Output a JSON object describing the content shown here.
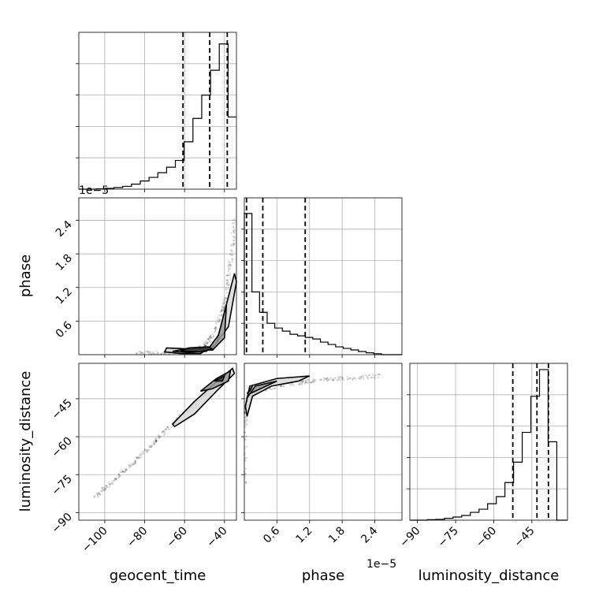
{
  "chart_data": [
    {
      "type": "histogram",
      "panel": "geocent_time",
      "xlim": [
        -113,
        -34
      ],
      "x_tick_values": [
        -100,
        -80,
        -60,
        -40
      ],
      "x_tick_labels": [
        "−100",
        "−80",
        "−60",
        "−40"
      ],
      "xlabel": "geocent_time",
      "bin_edges": [
        -113,
        -108.6,
        -104.2,
        -99.8,
        -95.4,
        -91.0,
        -86.6,
        -82.2,
        -77.8,
        -73.4,
        -69.0,
        -64.6,
        -60.2,
        -55.8,
        -51.4,
        -47.0,
        -42.6,
        -38.2,
        -34
      ],
      "counts": [
        0.0,
        0.0,
        0.2,
        0.5,
        1.0,
        1.8,
        3.2,
        5.2,
        7.5,
        10.5,
        14.0,
        18.3,
        30.2,
        45.1,
        60.0,
        75.8,
        92.6,
        46.0
      ],
      "ylim": [
        0,
        100
      ],
      "quantile_lines": [
        -60.8,
        -47.4,
        -38.6
      ],
      "grid": true
    },
    {
      "type": "histogram",
      "panel": "phase",
      "xlim": [
        0.0,
        2.9
      ],
      "x_tick_values": [
        0.6,
        1.2,
        1.8,
        2.4
      ],
      "x_tick_labels": [
        "0.6",
        "1.2",
        "1.8",
        "2.4"
      ],
      "x_offset_text": "1e−5",
      "xlabel": "phase",
      "bin_edges": [
        0.0,
        0.14,
        0.28,
        0.42,
        0.56,
        0.7,
        0.84,
        0.98,
        1.12,
        1.26,
        1.4,
        1.54,
        1.68,
        1.82,
        1.96,
        2.1,
        2.24,
        2.38,
        2.52,
        2.9
      ],
      "counts": [
        90.0,
        40.0,
        27.0,
        20.0,
        17.0,
        15.0,
        13.0,
        12.0,
        11.0,
        10.0,
        8.0,
        6.5,
        5.0,
        4.0,
        3.0,
        2.0,
        1.2,
        0.6,
        0.0
      ],
      "ylim": [
        0,
        100
      ],
      "quantile_lines": [
        0.04,
        0.34,
        1.12
      ],
      "grid": true
    },
    {
      "type": "histogram",
      "panel": "luminosity_distance",
      "xlim": [
        -93,
        -31
      ],
      "x_tick_values": [
        -90,
        -75,
        -60,
        -45
      ],
      "x_tick_labels": [
        "−90",
        "−75",
        "−60",
        "−45"
      ],
      "xlabel": "luminosity_distance",
      "bin_edges": [
        -93,
        -89.6,
        -86.2,
        -82.8,
        -79.4,
        -76.0,
        -72.6,
        -69.2,
        -65.8,
        -62.4,
        -59.0,
        -55.6,
        -52.2,
        -48.8,
        -45.4,
        -42.0,
        -38.6,
        -35.2,
        -31
      ],
      "counts": [
        0.0,
        0.0,
        0.3,
        0.5,
        1.2,
        2.0,
        3.0,
        5.0,
        7.0,
        10.5,
        15.0,
        24.0,
        37.0,
        56.0,
        79.0,
        96.0,
        50.0,
        0.0
      ],
      "ylim": [
        0,
        100
      ],
      "quantile_lines": [
        -52.5,
        -43.0,
        -38.5
      ],
      "grid": true
    },
    {
      "type": "scatter",
      "panel": "phase_vs_geocent_time",
      "x": "geocent_time",
      "y": "phase",
      "xlim": [
        -113,
        -34
      ],
      "ylim": [
        0.0,
        2.8
      ],
      "y_tick_values": [
        0.6,
        1.2,
        1.8,
        2.4
      ],
      "y_tick_labels": [
        "0.6",
        "1.2",
        "1.8",
        "2.4"
      ],
      "y_offset_text": "1e−5",
      "ylabel": "phase",
      "density_trend": [
        [
          -84,
          0.02
        ],
        [
          -70,
          0.04
        ],
        [
          -60,
          0.06
        ],
        [
          -50,
          0.15
        ],
        [
          -45,
          0.4
        ],
        [
          -40,
          0.9
        ],
        [
          -37,
          1.6
        ],
        [
          -35,
          2.4
        ]
      ],
      "contours": [
        [
          [
            -70,
            0.05
          ],
          [
            -62,
            0.02
          ],
          [
            -52,
            0.02
          ],
          [
            -44,
            0.2
          ],
          [
            -39,
            0.9
          ],
          [
            -35,
            1.45
          ],
          [
            -34,
            1.3
          ],
          [
            -38,
            0.5
          ],
          [
            -46,
            0.12
          ],
          [
            -56,
            0.1
          ],
          [
            -69,
            0.12
          ]
        ],
        [
          [
            -66,
            0.06
          ],
          [
            -58,
            0.04
          ],
          [
            -49,
            0.06
          ],
          [
            -43,
            0.35
          ],
          [
            -39,
            0.9
          ],
          [
            -40,
            0.3
          ],
          [
            -46,
            0.08
          ],
          [
            -60,
            0.1
          ]
        ],
        [
          [
            -62,
            0.07
          ],
          [
            -52,
            0.05
          ],
          [
            -46,
            0.1
          ],
          [
            -48,
            0.14
          ],
          [
            -58,
            0.12
          ]
        ]
      ]
    },
    {
      "type": "scatter",
      "panel": "luminosity_distance_vs_geocent_time",
      "x": "geocent_time",
      "y": "luminosity_distance",
      "xlim": [
        -113,
        -34
      ],
      "ylim": [
        -93,
        -31
      ],
      "y_tick_values": [
        -90,
        -75,
        -60,
        -45
      ],
      "y_tick_labels": [
        "−90",
        "−75",
        "−60",
        "−45"
      ],
      "ylabel": "luminosity_distance",
      "density_trend": [
        [
          -105,
          -84
        ],
        [
          -95,
          -77
        ],
        [
          -85,
          -70
        ],
        [
          -75,
          -62
        ],
        [
          -65,
          -54
        ],
        [
          -55,
          -47
        ],
        [
          -45,
          -40
        ],
        [
          -37,
          -35
        ]
      ],
      "contours": [
        [
          [
            -66,
            -55
          ],
          [
            -55,
            -46
          ],
          [
            -45,
            -39
          ],
          [
            -36,
            -33
          ],
          [
            -35,
            -35
          ],
          [
            -44,
            -42
          ],
          [
            -55,
            -51
          ],
          [
            -65,
            -56
          ]
        ],
        [
          [
            -52,
            -42
          ],
          [
            -44,
            -37
          ],
          [
            -37,
            -34
          ],
          [
            -38,
            -38
          ],
          [
            -46,
            -41
          ]
        ],
        [
          [
            -45,
            -38
          ],
          [
            -40,
            -36
          ],
          [
            -41,
            -38
          ]
        ]
      ]
    },
    {
      "type": "scatter",
      "panel": "luminosity_distance_vs_phase",
      "x": "phase",
      "y": "luminosity_distance",
      "xlim": [
        0.0,
        2.9
      ],
      "ylim": [
        -93,
        -31
      ],
      "density_trend": [
        [
          0.0,
          -80
        ],
        [
          0.02,
          -55
        ],
        [
          0.05,
          -45
        ],
        [
          0.2,
          -42
        ],
        [
          0.6,
          -40
        ],
        [
          1.2,
          -38
        ],
        [
          1.8,
          -37
        ],
        [
          2.5,
          -36
        ]
      ],
      "contours": [
        [
          [
            0.02,
            -48
          ],
          [
            0.1,
            -40
          ],
          [
            0.6,
            -37
          ],
          [
            1.2,
            -36
          ],
          [
            1.0,
            -38
          ],
          [
            0.5,
            -40
          ],
          [
            0.15,
            -44
          ],
          [
            0.05,
            -52
          ]
        ],
        [
          [
            0.04,
            -45
          ],
          [
            0.2,
            -40
          ],
          [
            0.6,
            -38
          ],
          [
            0.4,
            -40
          ],
          [
            0.1,
            -43
          ]
        ],
        [
          [
            0.05,
            -43
          ],
          [
            0.15,
            -40
          ],
          [
            0.1,
            -42
          ]
        ]
      ]
    }
  ]
}
